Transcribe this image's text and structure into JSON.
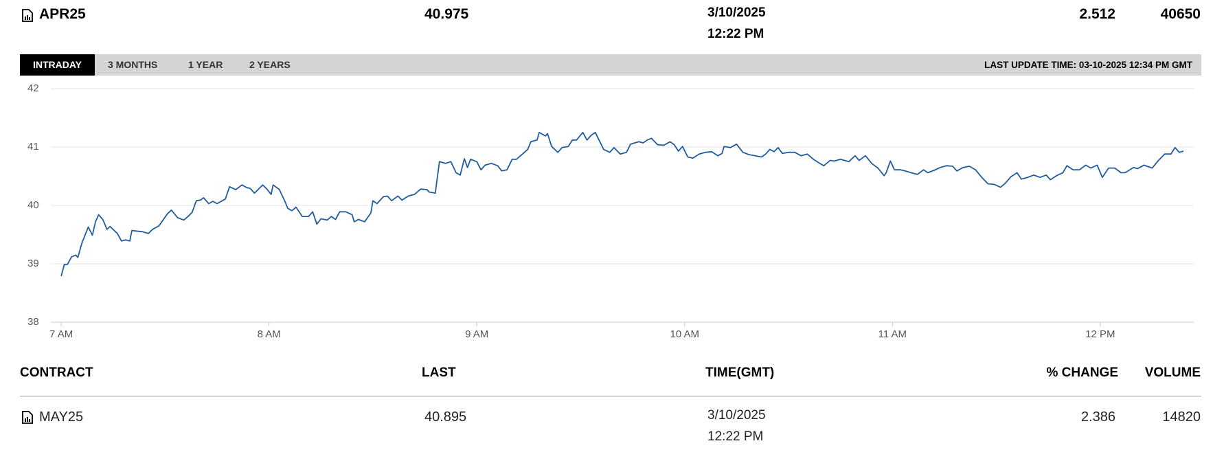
{
  "header": {
    "contract": "APR25",
    "last": 40.975,
    "date": "3/10/2025",
    "time": "12:22 PM",
    "change": 2.512,
    "volume": 40650
  },
  "tabs": [
    "INTRADAY",
    "3 MONTHS",
    "1 YEAR",
    "2 YEARS"
  ],
  "last_update": "LAST UPDATE TIME: 03-10-2025 12:34 PM GMT",
  "chart_data": {
    "type": "line",
    "color": "#1f5c9e",
    "grid": true,
    "xlim": [
      6.95,
      12.45
    ],
    "xticks": [
      {
        "value": 7,
        "label": "7 AM"
      },
      {
        "value": 8,
        "label": "8 AM"
      },
      {
        "value": 9,
        "label": "9 AM"
      },
      {
        "value": 10,
        "label": "10 AM"
      },
      {
        "value": 11,
        "label": "11 AM"
      },
      {
        "value": 12,
        "label": "12 PM"
      }
    ],
    "ylim": [
      38,
      42
    ],
    "yticks": [
      38,
      39,
      40,
      41,
      42
    ],
    "x": [
      7.0,
      7.015,
      7.03,
      7.05,
      7.07,
      7.08,
      7.1,
      7.13,
      7.15,
      7.165,
      7.18,
      7.2,
      7.22,
      7.235,
      7.27,
      7.29,
      7.31,
      7.33,
      7.34,
      7.39,
      7.42,
      7.44,
      7.47,
      7.49,
      7.51,
      7.53,
      7.56,
      7.59,
      7.61,
      7.63,
      7.65,
      7.67,
      7.685,
      7.71,
      7.73,
      7.75,
      7.79,
      7.81,
      7.84,
      7.87,
      7.89,
      7.91,
      7.93,
      7.97,
      7.99,
      8.01,
      8.02,
      8.05,
      8.075,
      8.09,
      8.11,
      8.13,
      8.16,
      8.19,
      8.21,
      8.23,
      8.25,
      8.28,
      8.3,
      8.32,
      8.34,
      8.37,
      8.4,
      8.41,
      8.43,
      8.46,
      8.49,
      8.5,
      8.52,
      8.55,
      8.57,
      8.59,
      8.62,
      8.64,
      8.67,
      8.7,
      8.73,
      8.76,
      8.77,
      8.8,
      8.82,
      8.85,
      8.875,
      8.9,
      8.92,
      8.94,
      8.955,
      8.97,
      9.0,
      9.02,
      9.04,
      9.07,
      9.1,
      9.12,
      9.145,
      9.17,
      9.19,
      9.22,
      9.245,
      9.26,
      9.29,
      9.3,
      9.33,
      9.34,
      9.36,
      9.39,
      9.41,
      9.44,
      9.46,
      9.48,
      9.51,
      9.53,
      9.55,
      9.57,
      9.61,
      9.64,
      9.66,
      9.69,
      9.72,
      9.74,
      9.78,
      9.8,
      9.82,
      9.84,
      9.87,
      9.9,
      9.93,
      9.95,
      9.97,
      9.99,
      10.015,
      10.04,
      10.07,
      10.1,
      10.13,
      10.16,
      10.18,
      10.19,
      10.22,
      10.25,
      10.28,
      10.31,
      10.34,
      10.37,
      10.39,
      10.41,
      10.43,
      10.45,
      10.47,
      10.5,
      10.53,
      10.56,
      10.59,
      10.62,
      10.65,
      10.67,
      10.7,
      10.72,
      10.75,
      10.79,
      10.82,
      10.84,
      10.87,
      10.9,
      10.93,
      10.96,
      10.97,
      10.99,
      11.01,
      11.04,
      11.06,
      11.09,
      11.12,
      11.15,
      11.17,
      11.2,
      11.23,
      11.26,
      11.29,
      11.31,
      11.34,
      11.37,
      11.4,
      11.43,
      11.46,
      11.49,
      11.52,
      11.54,
      11.57,
      11.6,
      11.62,
      11.65,
      11.68,
      11.71,
      11.74,
      11.76,
      11.79,
      11.82,
      11.84,
      11.87,
      11.9,
      11.93,
      11.955,
      11.985,
      12.01,
      12.04,
      12.07,
      12.1,
      12.12,
      12.16,
      12.18,
      12.21,
      12.25,
      12.28,
      12.31,
      12.34,
      12.36,
      12.38,
      12.4
    ],
    "values": [
      38.79,
      38.99,
      38.99,
      39.12,
      39.15,
      39.11,
      39.36,
      39.63,
      39.49,
      39.72,
      39.84,
      39.76,
      39.59,
      39.64,
      39.52,
      39.39,
      39.41,
      39.39,
      39.57,
      39.55,
      39.52,
      39.59,
      39.65,
      39.75,
      39.85,
      39.92,
      39.79,
      39.75,
      39.81,
      39.88,
      40.08,
      40.09,
      40.13,
      40.03,
      40.07,
      40.03,
      40.11,
      40.32,
      40.27,
      40.35,
      40.31,
      40.29,
      40.21,
      40.35,
      40.28,
      40.19,
      40.35,
      40.27,
      40.08,
      39.95,
      39.91,
      39.97,
      39.81,
      39.81,
      39.89,
      39.68,
      39.77,
      39.75,
      39.81,
      39.76,
      39.89,
      39.89,
      39.84,
      39.72,
      39.76,
      39.72,
      39.87,
      40.08,
      40.03,
      40.15,
      40.16,
      40.08,
      40.16,
      40.09,
      40.16,
      40.19,
      40.28,
      40.27,
      40.23,
      40.21,
      40.75,
      40.72,
      40.75,
      40.56,
      40.52,
      40.8,
      40.65,
      40.79,
      40.75,
      40.61,
      40.69,
      40.72,
      40.68,
      40.59,
      40.61,
      40.79,
      40.79,
      40.88,
      40.96,
      41.09,
      41.12,
      41.25,
      41.19,
      41.23,
      41.01,
      40.91,
      40.99,
      41.01,
      41.12,
      41.12,
      41.25,
      41.12,
      41.2,
      41.25,
      40.96,
      40.91,
      40.99,
      40.88,
      40.91,
      41.05,
      41.09,
      41.07,
      41.12,
      41.15,
      41.04,
      41.03,
      41.09,
      41.04,
      40.93,
      41.01,
      40.83,
      40.81,
      40.88,
      40.91,
      40.92,
      40.85,
      40.89,
      41.01,
      40.99,
      41.05,
      40.91,
      40.87,
      40.85,
      40.83,
      40.88,
      40.96,
      40.92,
      40.99,
      40.89,
      40.91,
      40.91,
      40.85,
      40.88,
      40.79,
      40.72,
      40.68,
      40.77,
      40.76,
      40.79,
      40.75,
      40.85,
      40.77,
      40.85,
      40.72,
      40.64,
      40.51,
      40.56,
      40.76,
      40.61,
      40.61,
      40.59,
      40.56,
      40.53,
      40.61,
      40.56,
      40.6,
      40.65,
      40.68,
      40.67,
      40.59,
      40.65,
      40.67,
      40.61,
      40.48,
      40.37,
      40.36,
      40.31,
      40.37,
      40.49,
      40.56,
      40.45,
      40.48,
      40.52,
      40.48,
      40.52,
      40.44,
      40.51,
      40.56,
      40.68,
      40.61,
      40.61,
      40.69,
      40.64,
      40.69,
      40.48,
      40.64,
      40.64,
      40.56,
      40.56,
      40.65,
      40.63,
      40.69,
      40.64,
      40.77,
      40.88,
      40.88,
      40.99,
      40.91,
      40.93
    ]
  },
  "table": {
    "columns": [
      "CONTRACT",
      "LAST",
      "TIME(GMT)",
      "% CHANGE",
      "VOLUME"
    ],
    "rows": [
      {
        "contract": "MAY25",
        "last": 40.895,
        "date": "3/10/2025",
        "time": "12:22 PM",
        "change": 2.386,
        "volume": 14820
      }
    ]
  }
}
